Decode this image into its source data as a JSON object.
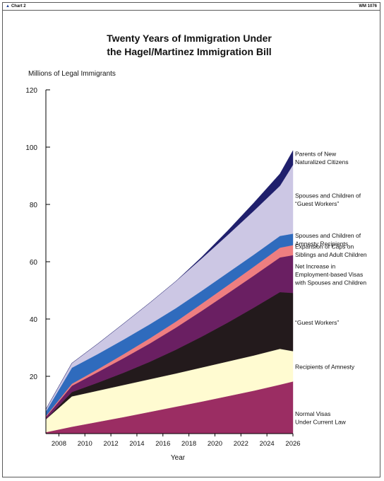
{
  "header": {
    "left_label": "Chart 2",
    "right_label": "WM 1076"
  },
  "chart_data": {
    "type": "area",
    "stacked": true,
    "title": "Twenty Years of Immigration Under the Hagel/Martinez Immigration Bill",
    "title_lines": [
      "Twenty Years of Immigration Under",
      "the Hagel/Martinez Immigration Bill"
    ],
    "ylabel": "Millions of Legal Immigrants",
    "xlabel": "Year",
    "xlim": [
      2007,
      2026
    ],
    "ylim": [
      0,
      120
    ],
    "x_ticks": [
      2008,
      2010,
      2012,
      2014,
      2016,
      2018,
      2020,
      2022,
      2024,
      2026
    ],
    "y_ticks": [
      20,
      40,
      60,
      80,
      100,
      120
    ],
    "grid": false,
    "x": [
      2007,
      2009,
      2011,
      2013,
      2015,
      2017,
      2019,
      2021,
      2023,
      2025,
      2026
    ],
    "series": [
      {
        "name": "Normal Visas Under Current Law",
        "label_lines": [
          "Normal Visas",
          "Under Current Law"
        ],
        "color": "#9b2d63",
        "values": [
          0.5,
          2.4,
          4.1,
          5.8,
          7.6,
          9.4,
          11.2,
          13.1,
          15.0,
          17.1,
          18.2
        ]
      },
      {
        "name": "Recipients of Amnesty",
        "label_lines": [
          "Recipients of Amnesty"
        ],
        "color": "#fffbd1",
        "values": [
          4.5,
          10.6,
          10.9,
          11.2,
          11.4,
          11.6,
          11.9,
          12.1,
          12.3,
          12.5,
          10.6
        ]
      },
      {
        "name": "“Guest Workers”",
        "label_lines": [
          "“Guest Workers”"
        ],
        "color": "#231a1c",
        "values": [
          0.0,
          1.5,
          2.8,
          4.3,
          6.1,
          8.3,
          10.8,
          13.6,
          16.7,
          19.8,
          20.3
        ]
      },
      {
        "name": "Net Increase in Employment-based Visas with Spouses and Children",
        "label_lines": [
          "Net Increase in",
          "Employment-based Visas",
          "with Spouses and Children"
        ],
        "color": "#6a1f62",
        "values": [
          0.8,
          2.2,
          3.7,
          5.1,
          6.4,
          7.7,
          9.0,
          10.2,
          11.2,
          12.1,
          13.2
        ]
      },
      {
        "name": "Expansion of Caps on Siblings and Adult Children",
        "label_lines": [
          "Expansion of Caps on",
          "Siblings and Adult Children"
        ],
        "color": "#ee7e80",
        "values": [
          0.3,
          0.7,
          1.0,
          1.4,
          1.8,
          2.1,
          2.5,
          2.8,
          3.1,
          3.4,
          3.5
        ]
      },
      {
        "name": "Spouses and Children of Amnesty Recipients",
        "label_lines": [
          "Spouses and Children of",
          "Amnesty Recipients"
        ],
        "color": "#2f6bbd",
        "values": [
          1.6,
          5.6,
          5.3,
          5.1,
          4.9,
          4.7,
          4.5,
          4.4,
          4.2,
          4.1,
          4.0
        ]
      },
      {
        "name": "Spouses and Children of “Guest Workers”",
        "label_lines": [
          "Spouses and Children of",
          "“Guest Workers”"
        ],
        "color": "#ccc7e4",
        "values": [
          0.8,
          1.6,
          3.6,
          5.6,
          7.5,
          9.4,
          11.3,
          13.2,
          15.3,
          17.5,
          24.0
        ]
      },
      {
        "name": "Parents of New Naturalized Citizens",
        "label_lines": [
          "Parents of New",
          "Naturalized Citizens"
        ],
        "color": "#1f1f6c",
        "values": [
          0.0,
          0.0,
          0.0,
          0.0,
          0.0,
          0.0,
          0.5,
          1.5,
          2.8,
          4.2,
          5.0
        ]
      }
    ]
  }
}
